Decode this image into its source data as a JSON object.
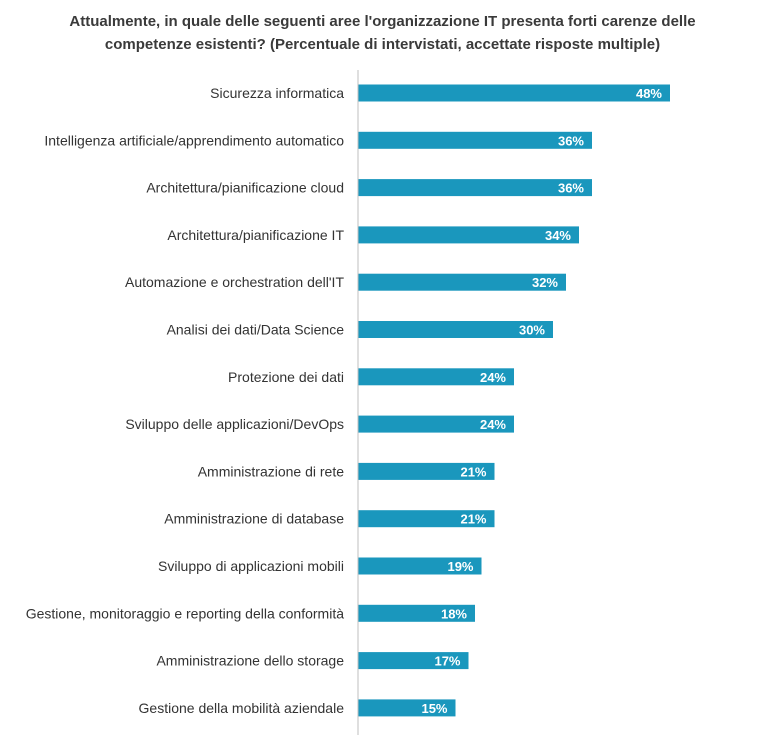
{
  "chart_data": {
    "type": "bar",
    "orientation": "horizontal",
    "title": "Attualmente, in quale delle seguenti aree l'organizzazione IT presenta forti carenze delle competenze esistenti? (Percentuale di intervistati, accettate risposte multiple)",
    "categories": [
      "Sicurezza informatica",
      "Intelligenza artificiale/apprendimento automatico",
      "Architettura/pianificazione cloud",
      "Architettura/pianificazione IT",
      "Automazione e orchestration dell'IT",
      "Analisi dei dati/Data Science",
      "Protezione dei dati",
      "Sviluppo delle applicazioni/DevOps",
      "Amministrazione di rete",
      "Amministrazione di database",
      "Sviluppo di applicazioni mobili",
      "Gestione, monitoraggio e reporting della conformità",
      "Amministrazione dello storage",
      "Gestione della mobilità aziendale"
    ],
    "values": [
      48,
      36,
      36,
      34,
      32,
      30,
      24,
      24,
      21,
      21,
      19,
      18,
      17,
      15
    ],
    "value_labels": [
      "48%",
      "36%",
      "36%",
      "34%",
      "32%",
      "30%",
      "24%",
      "24%",
      "21%",
      "21%",
      "19%",
      "18%",
      "17%",
      "15%"
    ],
    "unit": "%",
    "xlim": [
      0,
      50
    ],
    "bar_color": "#1a97bd",
    "axis_color": "#bfbfbf",
    "grid": false,
    "legend": "none"
  }
}
